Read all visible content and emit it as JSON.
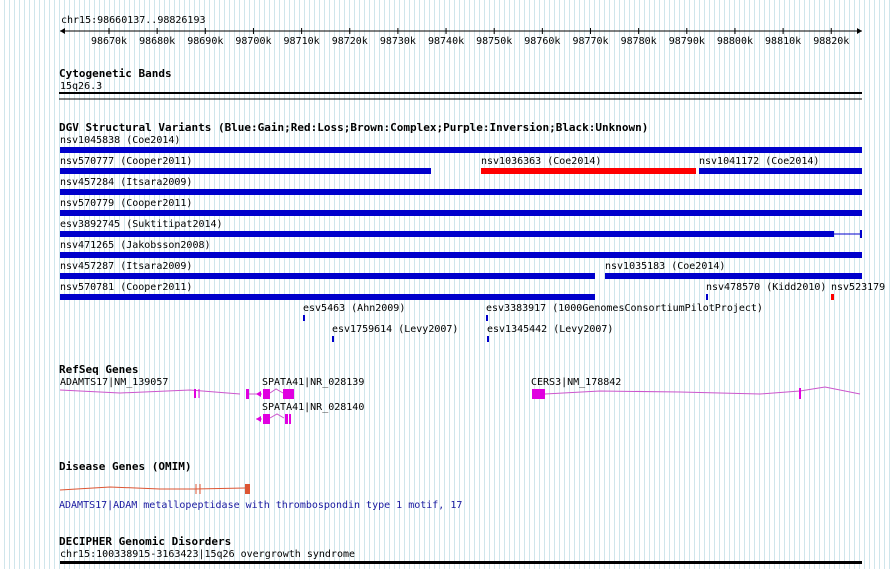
{
  "browser": {
    "position": "chr15:98660137..98826193",
    "ruler_ticks": [
      "98670k",
      "98680k",
      "98690k",
      "98700k",
      "98710k",
      "98720k",
      "98730k",
      "98740k",
      "98750k",
      "98760k",
      "98770k",
      "98780k",
      "98790k",
      "98800k",
      "98810k",
      "98820k"
    ]
  },
  "tracks": {
    "cytoband": {
      "title": "Cytogenetic Bands",
      "band": "15q26.3"
    },
    "dgv": {
      "title": "DGV Structural Variants (Blue:Gain;Red:Loss;Brown:Complex;Purple:Inversion;Black:Unknown)",
      "features": [
        {
          "label": "nsv1045838 (Coe2014)"
        },
        {
          "label": "nsv570777 (Cooper2011)"
        },
        {
          "label": "nsv1036363 (Coe2014)"
        },
        {
          "label": "nsv1041172 (Coe2014)"
        },
        {
          "label": "nsv457284 (Itsara2009)"
        },
        {
          "label": "nsv570779 (Cooper2011)"
        },
        {
          "label": "esv3892745 (Suktitipat2014)"
        },
        {
          "label": "nsv471265 (Jakobsson2008)"
        },
        {
          "label": "nsv457287 (Itsara2009)"
        },
        {
          "label": "nsv1035183 (Coe2014)"
        },
        {
          "label": "nsv570781 (Cooper2011)"
        },
        {
          "label": "nsv478570 (Kidd2010)"
        },
        {
          "label": "nsv523179"
        },
        {
          "label": "esv5463 (Ahn2009)"
        },
        {
          "label": "esv3383917 (1000GenomesConsortiumPilotProject)"
        },
        {
          "label": "esv1759614 (Levy2007)"
        },
        {
          "label": "esv1345442 (Levy2007)"
        }
      ]
    },
    "refseq": {
      "title": "RefSeq Genes",
      "genes": [
        {
          "label": "ADAMTS17|NM_139057"
        },
        {
          "label": "SPATA41|NR_028139"
        },
        {
          "label": "CERS3|NM_178842"
        },
        {
          "label": "SPATA41|NR_028140"
        }
      ]
    },
    "omim": {
      "title": "Disease Genes (OMIM)",
      "label": "ADAMTS17|ADAM metallopeptidase with thrombospondin type 1 motif, 17"
    },
    "decipher": {
      "title": "DECIPHER Genomic Disorders",
      "label": "chr15:100338915-3163423|15q26 overgrowth syndrome"
    }
  },
  "colors": {
    "gain": "#0000cc",
    "loss": "#ff0000",
    "gene": "#e000e0",
    "gene_line": "#cc55cc",
    "omim": "#dd5533",
    "grid": "#cfe6ec"
  }
}
